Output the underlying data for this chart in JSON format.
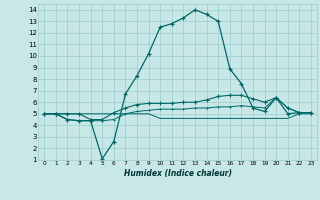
{
  "xlabel": "Humidex (Indice chaleur)",
  "xlim": [
    -0.5,
    23.5
  ],
  "ylim": [
    1,
    14.5
  ],
  "xticks": [
    0,
    1,
    2,
    3,
    4,
    5,
    6,
    7,
    8,
    9,
    10,
    11,
    12,
    13,
    14,
    15,
    16,
    17,
    18,
    19,
    20,
    21,
    22,
    23
  ],
  "yticks": [
    1,
    2,
    3,
    4,
    5,
    6,
    7,
    8,
    9,
    10,
    11,
    12,
    13,
    14
  ],
  "bg_color": "#c8e8e8",
  "grid_color": "#99cccc",
  "line_color": "#006666",
  "line1_x": [
    0,
    1,
    2,
    3,
    4,
    5,
    6,
    7,
    8,
    9,
    10,
    11,
    12,
    13,
    14,
    15,
    16,
    17,
    18,
    19,
    20,
    21,
    22,
    23
  ],
  "line1_y": [
    5,
    5,
    4.5,
    4.4,
    4.4,
    1.1,
    2.6,
    6.7,
    8.3,
    10.2,
    12.5,
    12.8,
    13.3,
    14.0,
    13.6,
    13.0,
    8.9,
    7.6,
    5.5,
    5.2,
    6.4,
    5.0,
    5.1,
    5.1
  ],
  "line2_x": [
    0,
    1,
    2,
    3,
    4,
    5,
    6,
    7,
    8,
    9,
    10,
    11,
    12,
    13,
    14,
    15,
    16,
    17,
    18,
    19,
    20,
    21,
    22,
    23
  ],
  "line2_y": [
    5,
    5,
    4.5,
    4.4,
    4.4,
    4.4,
    4.5,
    5.0,
    5.2,
    5.3,
    5.4,
    5.4,
    5.4,
    5.5,
    5.5,
    5.6,
    5.6,
    5.7,
    5.6,
    5.5,
    6.4,
    5.5,
    5.1,
    5.1
  ],
  "line3_x": [
    0,
    1,
    2,
    3,
    4,
    5,
    6,
    7,
    8,
    9,
    10,
    11,
    12,
    13,
    14,
    15,
    16,
    17,
    18,
    19,
    20,
    21,
    22,
    23
  ],
  "line3_y": [
    5,
    5,
    5,
    5,
    5,
    5,
    5,
    5,
    5,
    5,
    4.6,
    4.6,
    4.6,
    4.6,
    4.6,
    4.6,
    4.6,
    4.6,
    4.6,
    4.6,
    4.6,
    4.6,
    5,
    5
  ],
  "line4_x": [
    0,
    1,
    2,
    3,
    4,
    5,
    6,
    7,
    8,
    9,
    10,
    11,
    12,
    13,
    14,
    15,
    16,
    17,
    18,
    19,
    20,
    21,
    22,
    23
  ],
  "line4_y": [
    5,
    5,
    5,
    5,
    4.5,
    4.5,
    5.1,
    5.5,
    5.8,
    5.9,
    5.9,
    5.9,
    6.0,
    6.0,
    6.2,
    6.5,
    6.6,
    6.6,
    6.3,
    6.0,
    6.4,
    5.5,
    5.1,
    5.1
  ]
}
